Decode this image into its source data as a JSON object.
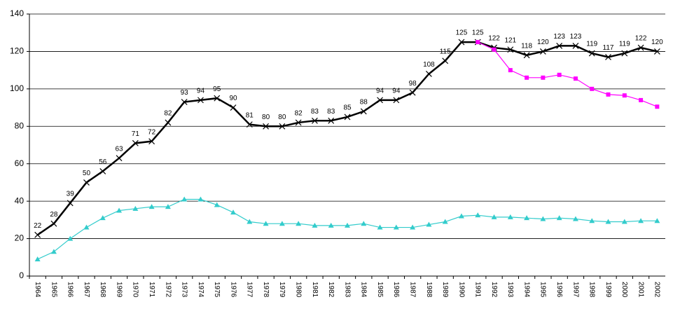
{
  "chart_data": {
    "type": "line",
    "categories": [
      "1964",
      "1965",
      "1966",
      "1967",
      "1968",
      "1969",
      "1970",
      "1971",
      "1972",
      "1973",
      "1974",
      "1975",
      "1976",
      "1977",
      "1978",
      "1979",
      "1980",
      "1981",
      "1982",
      "1983",
      "1984",
      "1985",
      "1986",
      "1987",
      "1988",
      "1989",
      "1990",
      "1991",
      "1992",
      "1993",
      "1994",
      "1995",
      "1996",
      "1997",
      "1998",
      "1999",
      "2000",
      "2001",
      "2002"
    ],
    "series": [
      {
        "color": "#000000",
        "marker": "x",
        "data_labels": true,
        "values": [
          22,
          28,
          39,
          50,
          56,
          63,
          71,
          72,
          82,
          93,
          94,
          95,
          90,
          81,
          80,
          80,
          82,
          83,
          83,
          85,
          88,
          94,
          94,
          98,
          108,
          115,
          125,
          125,
          122,
          121,
          118,
          120,
          123,
          123,
          119,
          117,
          119,
          122,
          120
        ]
      },
      {
        "color": "#ff00ff",
        "marker": "square",
        "data_labels": false,
        "values": [
          null,
          null,
          null,
          null,
          null,
          null,
          null,
          null,
          null,
          null,
          null,
          null,
          null,
          null,
          null,
          null,
          null,
          null,
          null,
          null,
          null,
          null,
          null,
          null,
          null,
          null,
          null,
          125,
          121,
          110,
          106,
          106,
          107.5,
          105.5,
          100,
          97,
          96.5,
          94,
          90.5
        ]
      },
      {
        "color": "#33cccc",
        "marker": "triangle",
        "data_labels": false,
        "values": [
          9,
          13,
          20,
          26,
          31,
          35,
          36,
          37,
          37,
          41,
          41,
          38,
          34,
          29,
          28,
          28,
          28,
          27,
          27,
          27,
          28,
          26,
          26,
          26,
          27.5,
          29,
          32,
          32.5,
          31.5,
          31.5,
          31,
          30.5,
          31,
          30.5,
          29.5,
          29,
          29,
          29.5,
          29.5
        ]
      }
    ],
    "ylim": [
      0,
      140
    ],
    "yticks": [
      0,
      20,
      40,
      60,
      80,
      100,
      120,
      140
    ],
    "grid": true
  }
}
